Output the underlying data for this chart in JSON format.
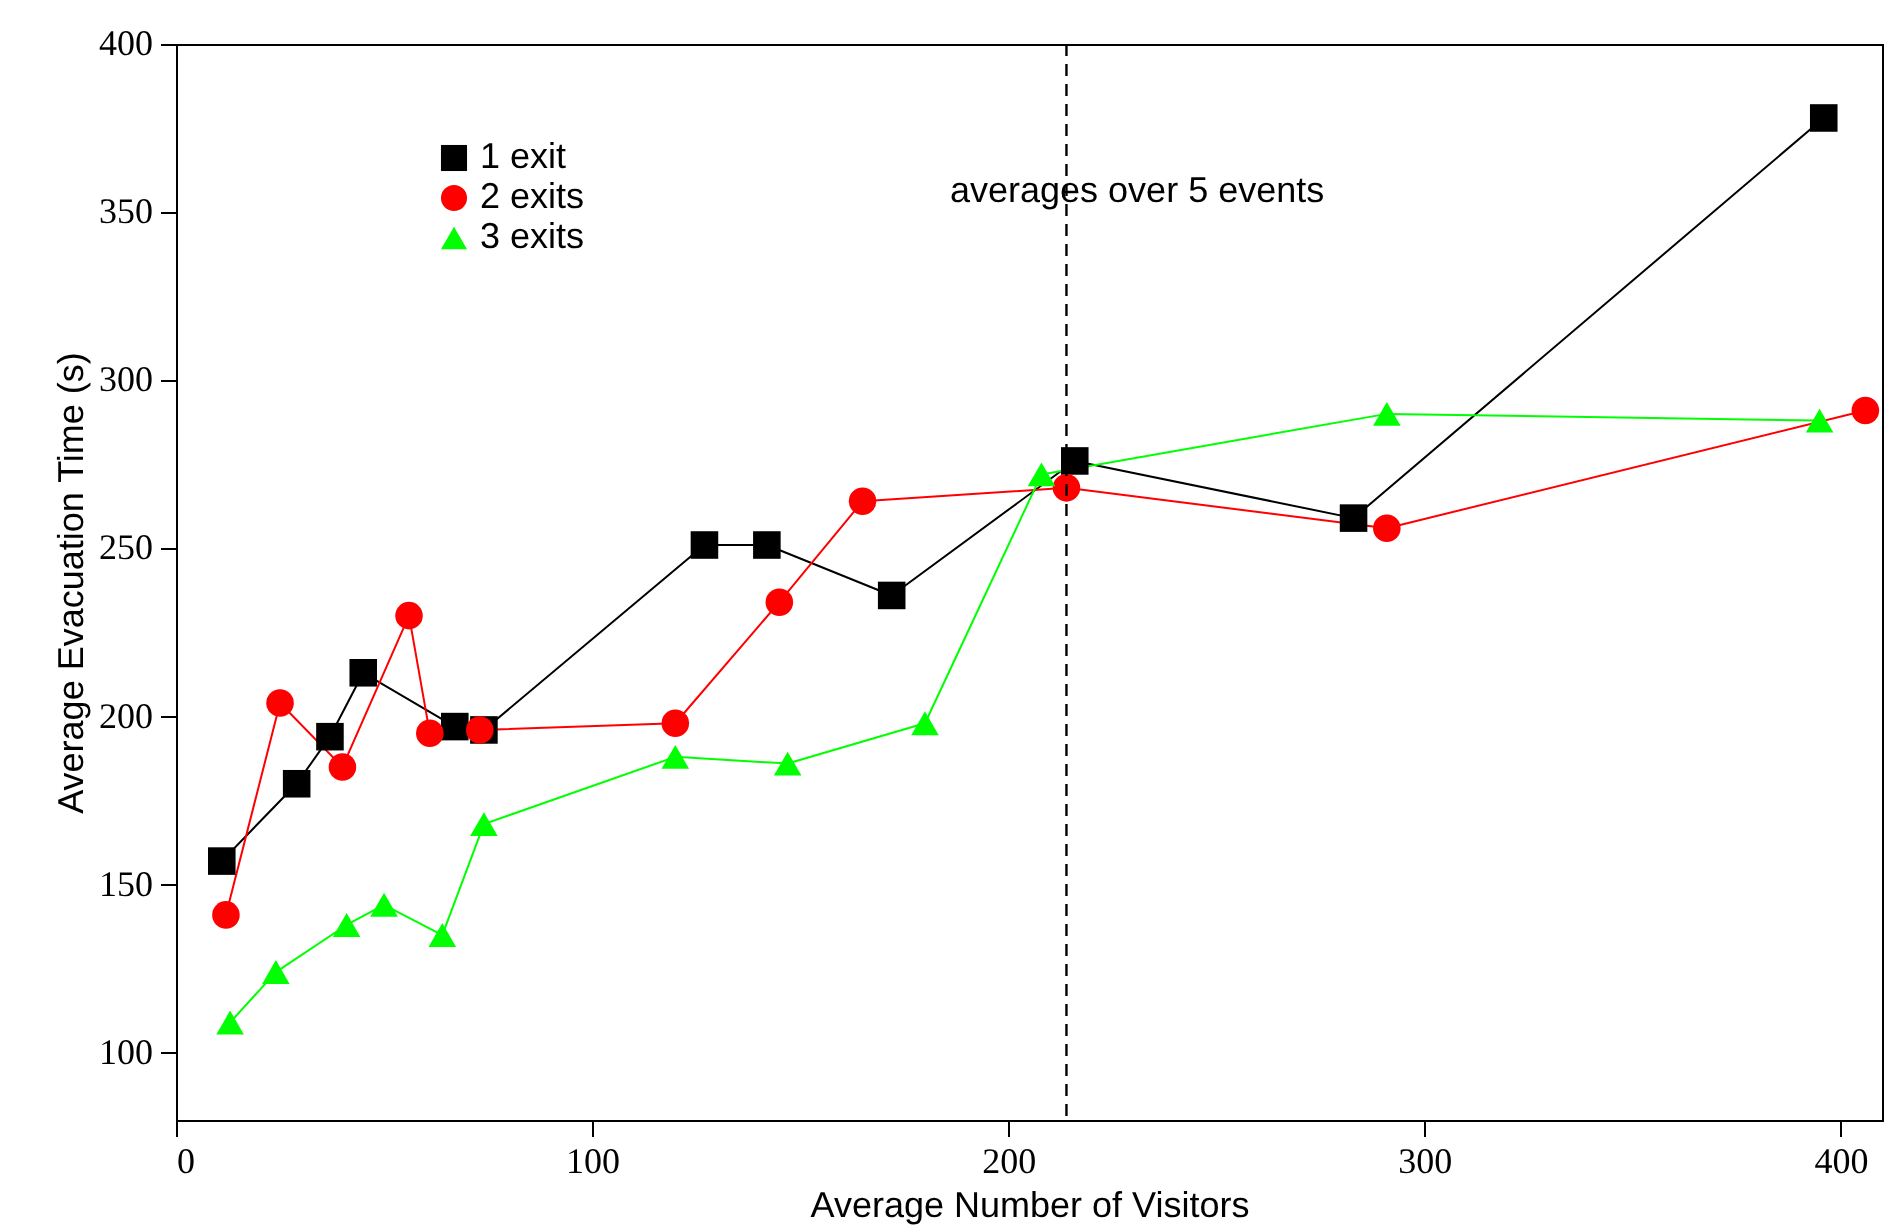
{
  "chart_data": {
    "type": "line",
    "xlabel": "Average Number of Visitors",
    "ylabel": "Average Evacuation Time (s)",
    "annotations": [
      "averages over 5 events"
    ],
    "xlim": [
      0,
      410
    ],
    "xticks": [
      0,
      100,
      200,
      300,
      400
    ],
    "ylim": [
      80,
      400
    ],
    "yticks": [
      100,
      150,
      200,
      250,
      300,
      350,
      400
    ],
    "grid": false,
    "legend": "top left",
    "line_style": "solid",
    "ref_lines": [
      {
        "axis": "x",
        "value": 214,
        "line_style": "dashed",
        "color": "#000000"
      }
    ],
    "series": [
      {
        "name": "1 exit",
        "color": "#000000",
        "marker": "square",
        "x": [
          11,
          29,
          37,
          45,
          67,
          74,
          127,
          142,
          172,
          216,
          283,
          396
        ],
        "values": [
          157,
          180,
          194,
          213,
          197,
          196,
          251,
          251,
          236,
          276,
          259,
          378
        ]
      },
      {
        "name": "2 exits",
        "color": "#ff0000",
        "marker": "circle",
        "x": [
          12,
          25,
          40,
          56,
          61,
          73,
          120,
          145,
          165,
          214,
          291,
          406
        ],
        "values": [
          141,
          204,
          185,
          230,
          195,
          196,
          198,
          234,
          264,
          268,
          256,
          291
        ]
      },
      {
        "name": "3 exits",
        "color": "#00ff00",
        "marker": "triangle",
        "x": [
          13,
          24,
          41,
          50,
          64,
          74,
          120,
          147,
          180,
          208,
          291,
          395
        ],
        "values": [
          109,
          124,
          138,
          144,
          135,
          168,
          188,
          186,
          198,
          272,
          290,
          288
        ]
      }
    ]
  }
}
